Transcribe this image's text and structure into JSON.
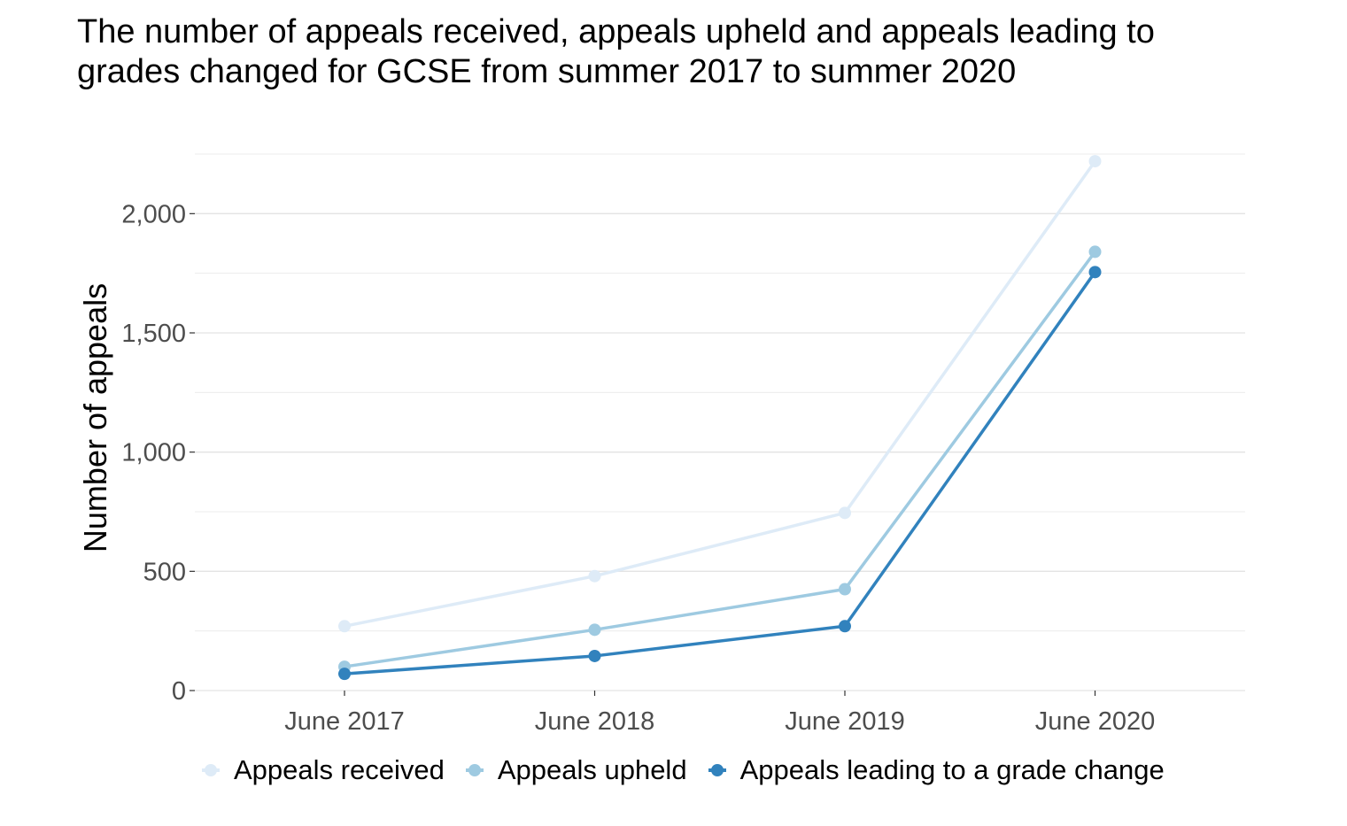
{
  "chart_data": {
    "type": "line",
    "title": "The number of appeals received, appeals upheld and appeals leading to grades changed for GCSE from summer 2017 to summer 2020",
    "ylabel": "Number of appeals",
    "xlabel": "",
    "categories": [
      "June 2017",
      "June 2018",
      "June 2019",
      "June 2020"
    ],
    "y_ticks": [
      0,
      500,
      1000,
      1500,
      2000
    ],
    "y_tick_labels": [
      "0",
      "500",
      "1,000",
      "1,500",
      "2,000"
    ],
    "ylim": [
      0,
      2250
    ],
    "grid": true,
    "legend_position": "bottom",
    "series": [
      {
        "name": "Appeals received",
        "color": "#deebf7",
        "values": [
          270,
          480,
          745,
          2220
        ]
      },
      {
        "name": "Appeals upheld",
        "color": "#9ecae1",
        "values": [
          100,
          255,
          425,
          1840
        ]
      },
      {
        "name": "Appeals leading to a grade change",
        "color": "#3182bd",
        "values": [
          70,
          145,
          270,
          1755
        ]
      }
    ]
  }
}
